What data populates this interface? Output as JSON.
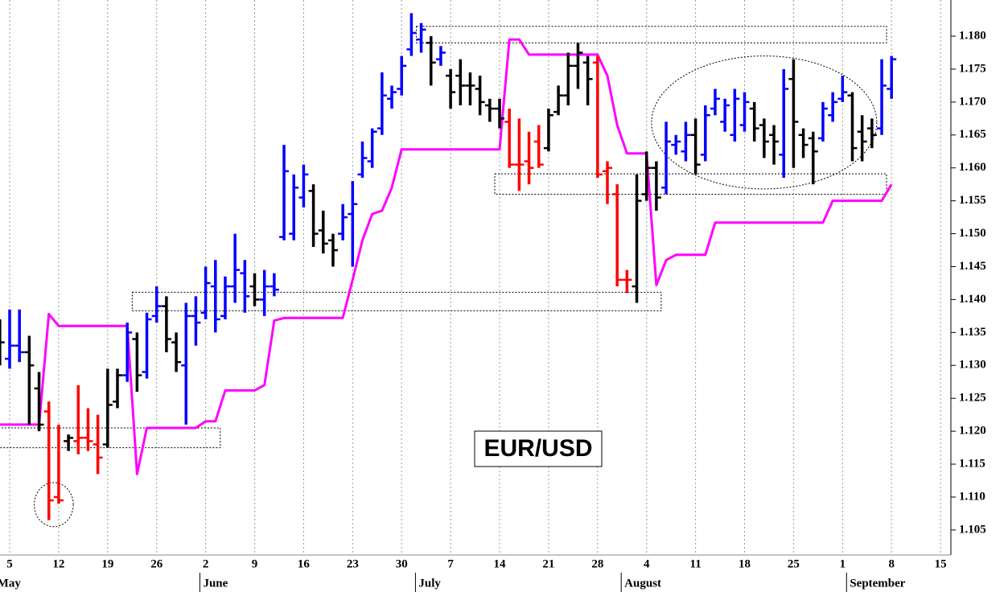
{
  "chart_data": {
    "type": "ohlc",
    "label": "EUR/USD",
    "x": [
      "May 4",
      "May 5",
      "May 8",
      "May 9",
      "May 10",
      "May 11",
      "May 12",
      "May 15",
      "May 16",
      "May 17",
      "May 18",
      "May 19",
      "May 22",
      "May 23",
      "May 24",
      "May 25",
      "May 26",
      "May 29",
      "May 30",
      "May 31",
      "June 1",
      "June 2",
      "June 5",
      "June 6",
      "June 7",
      "June 8",
      "June 9",
      "June 12",
      "June 13",
      "June 14",
      "June 15",
      "June 16",
      "June 19",
      "June 20",
      "June 21",
      "June 22",
      "June 23",
      "June 26",
      "June 27",
      "June 28",
      "June 29",
      "June 30",
      "July 3",
      "July 4",
      "July 5",
      "July 6",
      "July 7",
      "July 10",
      "July 11",
      "July 12",
      "July 13",
      "July 14",
      "July 17",
      "July 18",
      "July 19",
      "July 20",
      "July 21",
      "July 24",
      "July 25",
      "July 26",
      "July 27",
      "July 28",
      "July 31",
      "August 1",
      "August 2",
      "August 3",
      "August 4",
      "August 7",
      "August 8",
      "August 9",
      "August 10",
      "August 11",
      "August 14",
      "August 15",
      "August 16",
      "August 17",
      "August 18",
      "August 21",
      "August 22",
      "August 23",
      "August 24",
      "August 25",
      "August 28",
      "August 29",
      "August 30",
      "August 31",
      "September 1",
      "September 4",
      "September 5",
      "September 6",
      "September 7",
      "September 8"
    ],
    "open": [
      1.132,
      1.131,
      1.133,
      1.132,
      1.1265,
      1.123,
      1.11,
      1.1185,
      1.1185,
      1.119,
      1.118,
      1.118,
      1.1245,
      1.1285,
      1.134,
      1.129,
      1.1375,
      1.139,
      1.1335,
      1.13,
      1.1375,
      1.138,
      1.142,
      1.1375,
      1.142,
      1.144,
      1.142,
      1.14,
      1.142,
      1.1495,
      1.15,
      1.1555,
      1.1565,
      1.1505,
      1.149,
      1.15,
      1.153,
      1.159,
      1.161,
      1.166,
      1.1705,
      1.172,
      1.178,
      1.1795,
      1.179,
      1.1765,
      1.174,
      1.174,
      1.1725,
      1.172,
      1.1695,
      1.169,
      1.167,
      1.1605,
      1.161,
      1.164,
      1.163,
      1.1685,
      1.171,
      1.1755,
      1.176,
      1.176,
      1.1595,
      1.156,
      1.143,
      1.142,
      1.156,
      1.16,
      1.157,
      1.1635,
      1.1625,
      1.165,
      1.162,
      1.169,
      1.167,
      1.165,
      1.1665,
      1.169,
      1.1665,
      1.165,
      1.162,
      1.1735,
      1.165,
      1.1645,
      1.1645,
      1.168,
      1.1705,
      1.171,
      1.1655,
      1.166,
      1.166,
      1.172
    ],
    "high": [
      1.137,
      1.1385,
      1.1385,
      1.1345,
      1.129,
      1.1245,
      1.121,
      1.1195,
      1.127,
      1.1235,
      1.1225,
      1.1295,
      1.1295,
      1.1365,
      1.135,
      1.138,
      1.142,
      1.1405,
      1.135,
      1.1395,
      1.1405,
      1.145,
      1.146,
      1.1435,
      1.15,
      1.146,
      1.144,
      1.1445,
      1.144,
      1.1635,
      1.159,
      1.1605,
      1.1575,
      1.1535,
      1.15,
      1.1545,
      1.158,
      1.164,
      1.166,
      1.1745,
      1.1725,
      1.177,
      1.1835,
      1.182,
      1.18,
      1.1785,
      1.175,
      1.1765,
      1.1745,
      1.174,
      1.1705,
      1.1705,
      1.169,
      1.1675,
      1.1655,
      1.1665,
      1.169,
      1.1725,
      1.1775,
      1.179,
      1.177,
      1.177,
      1.161,
      1.1575,
      1.1445,
      1.159,
      1.1625,
      1.161,
      1.167,
      1.165,
      1.167,
      1.1675,
      1.1695,
      1.172,
      1.1705,
      1.172,
      1.1715,
      1.17,
      1.1675,
      1.1665,
      1.175,
      1.1765,
      1.166,
      1.1655,
      1.17,
      1.1715,
      1.174,
      1.1715,
      1.168,
      1.1675,
      1.1765,
      1.177
    ],
    "low": [
      1.13,
      1.1295,
      1.1305,
      1.121,
      1.12,
      1.1065,
      1.109,
      1.117,
      1.1165,
      1.117,
      1.1135,
      1.1175,
      1.1235,
      1.1275,
      1.126,
      1.128,
      1.1365,
      1.132,
      1.129,
      1.121,
      1.133,
      1.137,
      1.135,
      1.137,
      1.1395,
      1.138,
      1.139,
      1.1375,
      1.1405,
      1.149,
      1.149,
      1.154,
      1.148,
      1.147,
      1.145,
      1.149,
      1.145,
      1.1585,
      1.16,
      1.165,
      1.169,
      1.171,
      1.177,
      1.1775,
      1.1725,
      1.1755,
      1.169,
      1.1695,
      1.1695,
      1.168,
      1.167,
      1.166,
      1.16,
      1.1565,
      1.1575,
      1.16,
      1.1625,
      1.168,
      1.1695,
      1.172,
      1.1695,
      1.1585,
      1.1545,
      1.142,
      1.141,
      1.1395,
      1.155,
      1.1535,
      1.156,
      1.162,
      1.161,
      1.159,
      1.161,
      1.168,
      1.1655,
      1.164,
      1.1655,
      1.164,
      1.1615,
      1.1605,
      1.1585,
      1.16,
      1.1615,
      1.1575,
      1.164,
      1.167,
      1.17,
      1.161,
      1.161,
      1.163,
      1.165,
      1.1705
    ],
    "close": [
      1.1335,
      1.133,
      1.132,
      1.13,
      1.121,
      1.1095,
      1.1095,
      1.119,
      1.119,
      1.1185,
      1.116,
      1.124,
      1.1285,
      1.135,
      1.1285,
      1.137,
      1.139,
      1.134,
      1.1305,
      1.1375,
      1.1365,
      1.1425,
      1.137,
      1.142,
      1.1445,
      1.1405,
      1.14,
      1.142,
      1.1415,
      1.1595,
      1.157,
      1.159,
      1.15,
      1.1485,
      1.1475,
      1.1525,
      1.1545,
      1.1615,
      1.1655,
      1.171,
      1.1715,
      1.1755,
      1.1805,
      1.181,
      1.176,
      1.1775,
      1.1715,
      1.1725,
      1.1725,
      1.17,
      1.169,
      1.1675,
      1.1605,
      1.1605,
      1.16,
      1.1605,
      1.168,
      1.171,
      1.1755,
      1.1775,
      1.1735,
      1.159,
      1.16,
      1.143,
      1.143,
      1.155,
      1.16,
      1.1555,
      1.164,
      1.164,
      1.165,
      1.1605,
      1.168,
      1.1705,
      1.1695,
      1.1705,
      1.17,
      1.166,
      1.164,
      1.164,
      1.172,
      1.167,
      1.1635,
      1.1625,
      1.169,
      1.17,
      1.1715,
      1.163,
      1.164,
      1.165,
      1.1725,
      1.1765
    ],
    "colors": [
      "#000000",
      "#0000ff",
      "#0000ff",
      "#000000",
      "#000000",
      "#ff0000",
      "#ff0000",
      "#000000",
      "#ff0000",
      "#ff0000",
      "#ff0000",
      "#000000",
      "#000000",
      "#0000ff",
      "#000000",
      "#0000ff",
      "#0000ff",
      "#000000",
      "#000000",
      "#0000ff",
      "#0000ff",
      "#0000ff",
      "#0000ff",
      "#0000ff",
      "#0000ff",
      "#0000ff",
      "#000000",
      "#0000ff",
      "#0000ff",
      "#0000ff",
      "#0000ff",
      "#0000ff",
      "#000000",
      "#000000",
      "#000000",
      "#0000ff",
      "#0000ff",
      "#0000ff",
      "#0000ff",
      "#0000ff",
      "#0000ff",
      "#0000ff",
      "#0000ff",
      "#0000ff",
      "#000000",
      "#0000ff",
      "#000000",
      "#000000",
      "#000000",
      "#000000",
      "#000000",
      "#000000",
      "#ff0000",
      "#ff0000",
      "#ff0000",
      "#ff0000",
      "#000000",
      "#000000",
      "#000000",
      "#000000",
      "#000000",
      "#ff0000",
      "#ff0000",
      "#ff0000",
      "#ff0000",
      "#000000",
      "#000000",
      "#000000",
      "#0000ff",
      "#0000ff",
      "#0000ff",
      "#000000",
      "#0000ff",
      "#0000ff",
      "#0000ff",
      "#0000ff",
      "#0000ff",
      "#000000",
      "#000000",
      "#000000",
      "#0000ff",
      "#000000",
      "#000000",
      "#000000",
      "#0000ff",
      "#0000ff",
      "#0000ff",
      "#000000",
      "#000000",
      "#000000",
      "#0000ff",
      "#0000ff"
    ],
    "line": {
      "color": "#ff00ff",
      "values": [
        1.121,
        1.121,
        1.121,
        1.121,
        1.121,
        1.1378,
        1.136,
        1.136,
        1.136,
        1.136,
        1.136,
        1.136,
        1.136,
        1.136,
        1.1135,
        1.1205,
        1.1205,
        1.1205,
        1.1205,
        1.1205,
        1.1205,
        1.1215,
        1.1215,
        1.1262,
        1.1262,
        1.1262,
        1.1262,
        1.127,
        1.1368,
        1.1372,
        1.1372,
        1.1372,
        1.1372,
        1.1372,
        1.1372,
        1.1372,
        1.143,
        1.149,
        1.153,
        1.1535,
        1.157,
        1.1628,
        1.1628,
        1.1628,
        1.1628,
        1.1628,
        1.1628,
        1.1628,
        1.1628,
        1.1628,
        1.1628,
        1.1628,
        1.1795,
        1.1795,
        1.1772,
        1.1772,
        1.1772,
        1.1772,
        1.1772,
        1.1772,
        1.1772,
        1.1772,
        1.174,
        1.1665,
        1.1622,
        1.1622,
        1.1622,
        1.1422,
        1.146,
        1.1468,
        1.1468,
        1.1468,
        1.1468,
        1.1517,
        1.1517,
        1.1517,
        1.1517,
        1.1517,
        1.1517,
        1.1517,
        1.1517,
        1.1517,
        1.1517,
        1.1517,
        1.1517,
        1.155,
        1.155,
        1.155,
        1.155,
        1.155,
        1.155,
        1.1575
      ]
    },
    "ylim": [
      1.1012,
      1.1855
    ],
    "yticks": [
      {
        "value": 1.105,
        "label": "1.105"
      },
      {
        "value": 1.11,
        "label": "1.110"
      },
      {
        "value": 1.115,
        "label": "1.115"
      },
      {
        "value": 1.12,
        "label": "1.120"
      },
      {
        "value": 1.125,
        "label": "1.125"
      },
      {
        "value": 1.13,
        "label": "1.130"
      },
      {
        "value": 1.135,
        "label": "1.135"
      },
      {
        "value": 1.14,
        "label": "1.140"
      },
      {
        "value": 1.145,
        "label": "1.145"
      },
      {
        "value": 1.15,
        "label": "1.150"
      },
      {
        "value": 1.155,
        "label": "1.155"
      },
      {
        "value": 1.16,
        "label": "1.160"
      },
      {
        "value": 1.165,
        "label": "1.165"
      },
      {
        "value": 1.17,
        "label": "1.170"
      },
      {
        "value": 1.175,
        "label": "1.175"
      },
      {
        "value": 1.18,
        "label": "1.180"
      }
    ],
    "xticks": [
      {
        "value": "May 5",
        "label": "5"
      },
      {
        "value": "May 12",
        "label": "12"
      },
      {
        "value": "May 19",
        "label": "19"
      },
      {
        "value": "May 26",
        "label": "26"
      },
      {
        "value": "June 2",
        "label": "2"
      },
      {
        "value": "June 9",
        "label": "9"
      },
      {
        "value": "June 16",
        "label": "16"
      },
      {
        "value": "June 23",
        "label": "23"
      },
      {
        "value": "June 30",
        "label": "30"
      },
      {
        "value": "July 7",
        "label": "7"
      },
      {
        "value": "July 14",
        "label": "14"
      },
      {
        "value": "July 21",
        "label": "21"
      },
      {
        "value": "July 28",
        "label": "28"
      },
      {
        "value": "August 4",
        "label": "4"
      },
      {
        "value": "August 11",
        "label": "11"
      },
      {
        "value": "August 18",
        "label": "18"
      },
      {
        "value": "August 25",
        "label": "25"
      },
      {
        "value": "September 1",
        "label": "1"
      },
      {
        "value": "September 8",
        "label": "8"
      },
      {
        "value": "September 15",
        "label": "15"
      }
    ],
    "month_labels": [
      {
        "value": "May 3",
        "label": "May"
      },
      {
        "value": "June 1",
        "label": "June"
      },
      {
        "value": "July 3",
        "label": "July"
      },
      {
        "value": "August 1",
        "label": "August"
      },
      {
        "value": "September 1",
        "label": "September"
      }
    ],
    "grid": true,
    "annotations": [
      {
        "shape": "box",
        "x": [
          "May 4",
          "June 5"
        ],
        "y": [
          1.1175,
          1.1205
        ]
      },
      {
        "shape": "box",
        "x": [
          "May 24",
          "August 7"
        ],
        "y": [
          1.1383,
          1.1411
        ]
      },
      {
        "shape": "box",
        "x": [
          "July 14",
          "September 7"
        ],
        "y": [
          1.156,
          1.1591
        ]
      },
      {
        "shape": "box",
        "x": [
          "July 4",
          "September 7"
        ],
        "y": [
          1.179,
          1.1815
        ]
      },
      {
        "shape": "ellipse",
        "x": [
          "May 10",
          "May 15"
        ],
        "y": [
          1.1055,
          1.1122
        ]
      },
      {
        "shape": "ellipse",
        "x": [
          "August 7",
          "September 6"
        ],
        "y": [
          1.1568,
          1.177
        ]
      }
    ]
  }
}
